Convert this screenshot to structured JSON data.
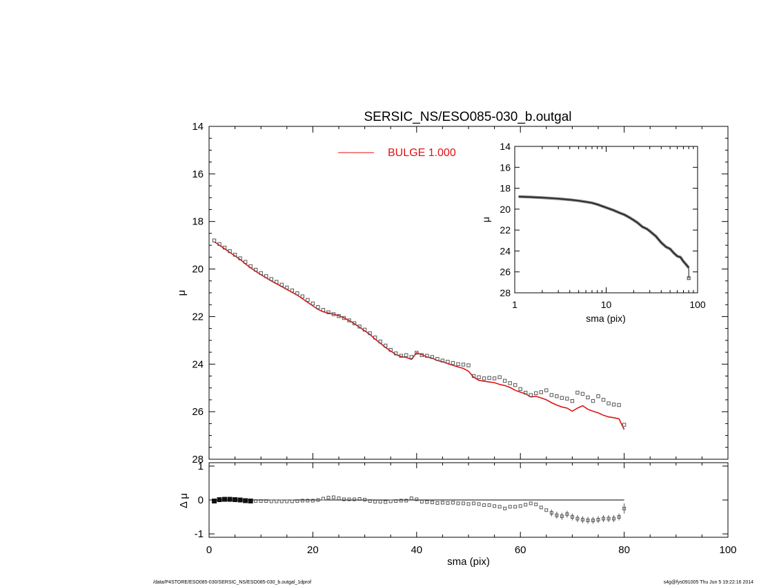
{
  "title": "SERSIC_NS/ESO085-030_b.outgal",
  "footer_left": "/data/P4STORE/ESO085-030/SERSIC_NS/ESO085-030_b.outgal_1dprof",
  "footer_right": "s4g@fys091005  Thu Jun  5 19:22:16 2014",
  "colors": {
    "model": "#e01010",
    "data": "#555555",
    "axes": "#000000"
  },
  "chart_data": [
    {
      "id": "main",
      "type": "scatter",
      "xlabel": "sma (pix)",
      "ylabel": "μ",
      "xlim": [
        0,
        100
      ],
      "ylim": [
        28,
        14
      ],
      "y_inverted": true,
      "xticks": [
        0,
        20,
        40,
        60,
        80,
        100
      ],
      "yticks": [
        14,
        16,
        18,
        20,
        22,
        24,
        26,
        28
      ],
      "legend": {
        "label": "BULGE  1.000",
        "color": "#e01010",
        "position": "top-center"
      },
      "data_points": {
        "name": "",
        "x": [
          1,
          2,
          3,
          4,
          5,
          6,
          7,
          8,
          9,
          10,
          11,
          12,
          13,
          14,
          15,
          16,
          17,
          18,
          19,
          20,
          21,
          22,
          23,
          24,
          25,
          26,
          27,
          28,
          29,
          30,
          31,
          32,
          33,
          34,
          35,
          36,
          37,
          38,
          39,
          40,
          41,
          42,
          43,
          44,
          45,
          46,
          47,
          48,
          49,
          50,
          51,
          52,
          53,
          54,
          55,
          56,
          57,
          58,
          59,
          60,
          61,
          62,
          63,
          64,
          65,
          66,
          67,
          68,
          69,
          70,
          71,
          72,
          73,
          74,
          75,
          76,
          77,
          78,
          79,
          80
        ],
        "y": [
          18.8,
          18.95,
          19.1,
          19.25,
          19.4,
          19.55,
          19.7,
          19.88,
          20.03,
          20.17,
          20.3,
          20.42,
          20.54,
          20.66,
          20.78,
          20.9,
          21.02,
          21.15,
          21.3,
          21.45,
          21.6,
          21.72,
          21.82,
          21.9,
          21.98,
          22.06,
          22.16,
          22.28,
          22.42,
          22.55,
          22.7,
          22.88,
          23.05,
          23.22,
          23.4,
          23.55,
          23.65,
          23.62,
          23.7,
          23.52,
          23.62,
          23.65,
          23.7,
          23.78,
          23.85,
          23.9,
          23.95,
          24.0,
          24.02,
          24.05,
          24.5,
          24.55,
          24.6,
          24.58,
          24.6,
          24.55,
          24.7,
          24.8,
          24.88,
          25.05,
          25.2,
          25.3,
          25.22,
          25.18,
          25.1,
          25.3,
          25.35,
          25.42,
          25.45,
          25.55,
          25.2,
          25.25,
          25.4,
          25.55,
          25.35,
          25.5,
          25.65,
          25.7,
          25.72,
          26.55
        ]
      },
      "model": {
        "name": "BULGE  1.000",
        "x": [
          1,
          2,
          3,
          4,
          5,
          6,
          7,
          8,
          9,
          10,
          11,
          12,
          13,
          14,
          15,
          16,
          17,
          18,
          19,
          20,
          21,
          22,
          23,
          24,
          25,
          26,
          27,
          28,
          29,
          30,
          31,
          32,
          33,
          34,
          35,
          36,
          37,
          38,
          39,
          40,
          41,
          42,
          43,
          44,
          45,
          46,
          47,
          48,
          49,
          50,
          51,
          52,
          53,
          54,
          55,
          56,
          57,
          58,
          59,
          60,
          61,
          62,
          63,
          64,
          65,
          66,
          67,
          68,
          69,
          70,
          71,
          72,
          73,
          74,
          75,
          76,
          77,
          78,
          79,
          80
        ],
        "y": [
          18.85,
          19.0,
          19.15,
          19.3,
          19.45,
          19.6,
          19.78,
          19.95,
          20.1,
          20.24,
          20.37,
          20.5,
          20.62,
          20.74,
          20.86,
          20.98,
          21.1,
          21.25,
          21.4,
          21.55,
          21.7,
          21.8,
          21.85,
          21.9,
          21.96,
          22.05,
          22.17,
          22.3,
          22.45,
          22.6,
          22.75,
          22.95,
          23.12,
          23.3,
          23.45,
          23.6,
          23.68,
          23.72,
          23.8,
          23.52,
          23.6,
          23.7,
          23.75,
          23.85,
          23.9,
          23.98,
          24.05,
          24.12,
          24.18,
          24.3,
          24.55,
          24.68,
          24.72,
          24.75,
          24.78,
          24.85,
          24.9,
          24.98,
          25.1,
          25.18,
          25.25,
          25.38,
          25.35,
          25.42,
          25.5,
          25.62,
          25.72,
          25.8,
          25.85,
          25.98,
          25.85,
          25.75,
          25.9,
          25.98,
          26.05,
          26.15,
          26.22,
          26.25,
          26.3,
          26.75
        ]
      }
    },
    {
      "id": "residual",
      "type": "scatter",
      "xlabel": "sma (pix)",
      "ylabel": "Δ μ",
      "xlim": [
        0,
        100
      ],
      "ylim": [
        -1.1,
        1.1
      ],
      "xticks": [
        0,
        20,
        40,
        60,
        80,
        100
      ],
      "yticks": [
        -1,
        0,
        1
      ],
      "zero_line": true,
      "series": {
        "name": "",
        "x": [
          1,
          2,
          3,
          4,
          5,
          6,
          7,
          8,
          9,
          10,
          11,
          12,
          13,
          14,
          15,
          16,
          17,
          18,
          19,
          20,
          21,
          22,
          23,
          24,
          25,
          26,
          27,
          28,
          29,
          30,
          31,
          32,
          33,
          34,
          35,
          36,
          37,
          38,
          39,
          40,
          41,
          42,
          43,
          44,
          45,
          46,
          47,
          48,
          49,
          50,
          51,
          52,
          53,
          54,
          55,
          56,
          57,
          58,
          59,
          60,
          61,
          62,
          63,
          64,
          65,
          66,
          67,
          68,
          69,
          70,
          71,
          72,
          73,
          74,
          75,
          76,
          77,
          78,
          79,
          80
        ],
        "y": [
          -0.03,
          0.01,
          0.02,
          0.02,
          0.01,
          0.0,
          -0.02,
          -0.03,
          -0.03,
          -0.03,
          -0.03,
          -0.04,
          -0.04,
          -0.04,
          -0.04,
          -0.04,
          -0.03,
          -0.02,
          -0.02,
          -0.02,
          0.0,
          0.04,
          0.07,
          0.08,
          0.05,
          0.02,
          0.02,
          0.02,
          0.03,
          0.01,
          -0.03,
          -0.05,
          -0.05,
          -0.06,
          -0.04,
          -0.03,
          -0.02,
          -0.02,
          0.05,
          0.02,
          -0.05,
          -0.06,
          -0.07,
          -0.09,
          -0.08,
          -0.09,
          -0.08,
          -0.1,
          -0.1,
          -0.12,
          -0.1,
          -0.12,
          -0.15,
          -0.15,
          -0.18,
          -0.2,
          -0.25,
          -0.2,
          -0.2,
          -0.18,
          -0.14,
          -0.1,
          -0.13,
          -0.22,
          -0.3,
          -0.38,
          -0.45,
          -0.48,
          -0.42,
          -0.5,
          -0.55,
          -0.58,
          -0.6,
          -0.6,
          -0.58,
          -0.55,
          -0.55,
          -0.55,
          -0.5,
          -0.25
        ]
      },
      "error_bar": {
        "x": 80,
        "y": -0.25,
        "err": 0.15
      }
    },
    {
      "id": "inset",
      "type": "line",
      "xlabel": "sma (pix)",
      "ylabel": "μ",
      "xscale": "log",
      "xlim": [
        1,
        100
      ],
      "ylim": [
        28,
        14
      ],
      "y_inverted": true,
      "xticks": [
        1,
        10,
        100
      ],
      "yticks": [
        14,
        16,
        18,
        20,
        22,
        24,
        26,
        28
      ],
      "series": {
        "name": "",
        "x": [
          1.1,
          1.5,
          2,
          3,
          4,
          5,
          6,
          7,
          8,
          10,
          12,
          14,
          16,
          18,
          20,
          22,
          25,
          28,
          30,
          35,
          40,
          45,
          50,
          55,
          60,
          65,
          70,
          75,
          80
        ],
        "y": [
          18.8,
          18.85,
          18.9,
          19.0,
          19.1,
          19.2,
          19.3,
          19.4,
          19.55,
          19.85,
          20.1,
          20.35,
          20.55,
          20.8,
          21.05,
          21.3,
          21.7,
          21.9,
          22.1,
          22.6,
          23.2,
          23.6,
          23.8,
          24.2,
          24.5,
          24.6,
          25.0,
          25.3,
          25.6
        ]
      },
      "tail": {
        "x": [
          80
        ],
        "y": [
          26.6
        ]
      }
    }
  ]
}
